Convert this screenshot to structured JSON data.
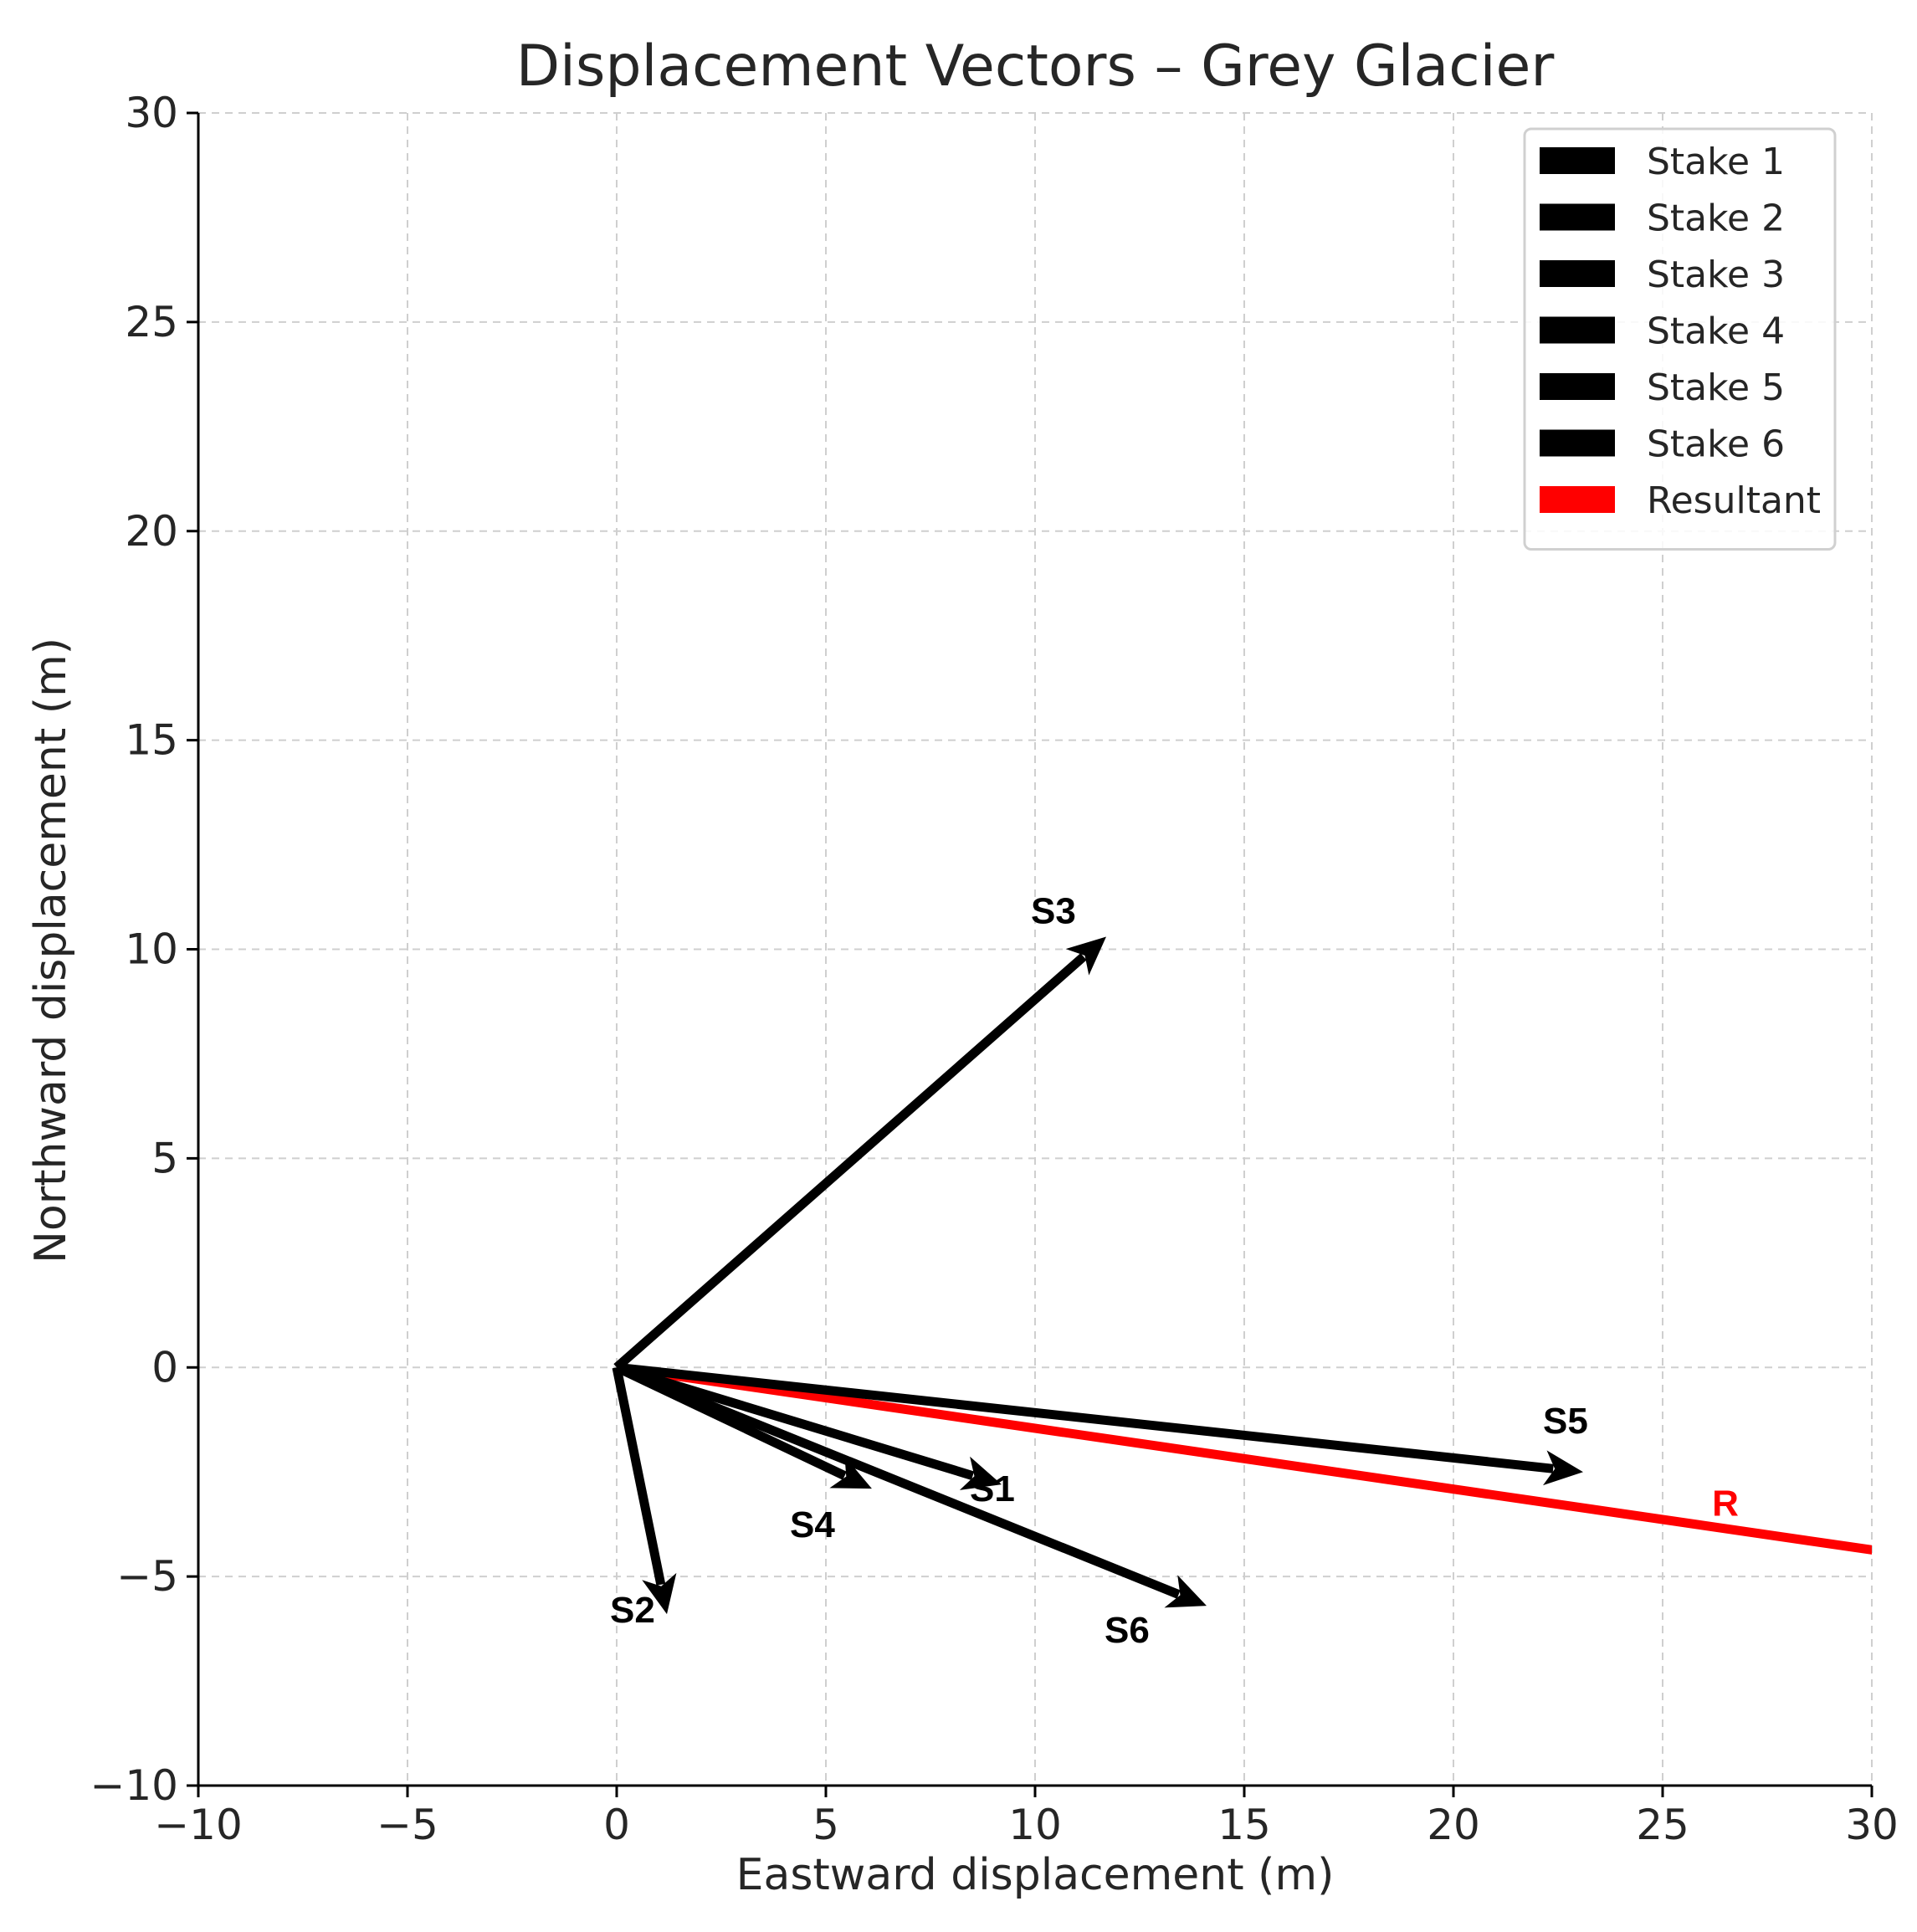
{
  "chart_data": {
    "type": "vector",
    "title": "Displacement Vectors – Grey Glacier",
    "xlabel": "Eastward displacement (m)",
    "ylabel": "Northward displacement (m)",
    "xlim": [
      -10,
      30
    ],
    "ylim": [
      -10,
      30
    ],
    "xticks": [
      -10,
      -5,
      0,
      5,
      10,
      15,
      20,
      25,
      30
    ],
    "yticks": [
      -10,
      -5,
      0,
      5,
      10,
      15,
      20,
      25,
      30
    ],
    "xtick_labels": [
      "−10",
      "−5",
      "0",
      "5",
      "10",
      "15",
      "20",
      "25",
      "30"
    ],
    "ytick_labels": [
      "−10",
      "−5",
      "0",
      "5",
      "10",
      "15",
      "20",
      "25",
      "30"
    ],
    "grid": true,
    "legend_position": "top-right",
    "origin": [
      0,
      0
    ],
    "vectors": [
      {
        "name": "Stake 1",
        "label": "S1",
        "dx": 9.2,
        "dy": -2.8,
        "color": "#000000"
      },
      {
        "name": "Stake 2",
        "label": "S2",
        "dx": 1.2,
        "dy": -5.9,
        "color": "#000000"
      },
      {
        "name": "Stake 3",
        "label": "S3",
        "dx": 11.7,
        "dy": 10.3,
        "color": "#000000"
      },
      {
        "name": "Stake 4",
        "label": "S4",
        "dx": 6.1,
        "dy": -2.9,
        "color": "#000000"
      },
      {
        "name": "Stake 5",
        "label": "S5",
        "dx": 23.1,
        "dy": -2.5,
        "color": "#000000"
      },
      {
        "name": "Stake 6",
        "label": "S6",
        "dx": 14.1,
        "dy": -5.7,
        "color": "#000000"
      },
      {
        "name": "Resultant",
        "label": "R",
        "dx": 65.3,
        "dy": -9.5,
        "color": "#ff0000"
      }
    ]
  }
}
